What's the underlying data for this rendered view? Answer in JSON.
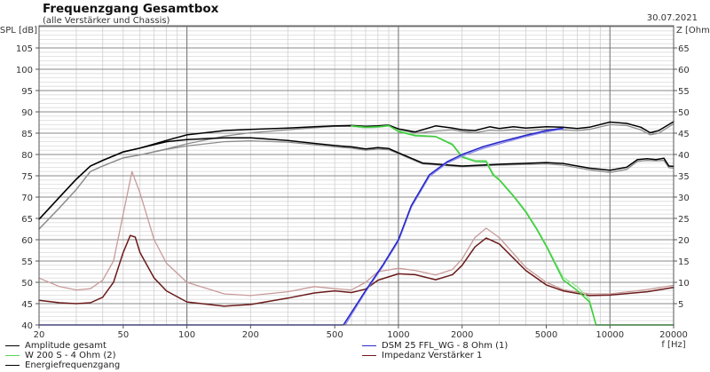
{
  "header": {
    "title": "Frequenzgang Gesamtbox",
    "subtitle": "(alle Verstärker und Chassis)",
    "date": "30.07.2021"
  },
  "legend": {
    "left": [
      {
        "label": "Amplitude gesamt",
        "color": "#000000"
      },
      {
        "label": "W 200 S - 4 Ohm (2)",
        "color": "#5ad65a"
      },
      {
        "label": "Energiefrequenzgang",
        "color": "#000000"
      }
    ],
    "right": [
      {
        "label": "DSM 25 FFL_WG - 8 Ohm (1)",
        "color": "#2b2bd0"
      },
      {
        "label": "Impedanz Verstärker 1",
        "color": "#6b1a1a"
      }
    ]
  },
  "chart_data": {
    "type": "line",
    "title": "Frequenzgang Gesamtbox",
    "subtitle": "(alle Verstärker und Chassis)",
    "xlabel": "f [Hz]",
    "ylabel": "SPL [dB]",
    "y2label": "Z [Ohm]",
    "xscale": "log",
    "xlim": [
      20,
      20000
    ],
    "ylim": [
      40,
      110
    ],
    "y2lim": [
      0,
      70
    ],
    "grid": true,
    "legend_position": "bottom",
    "x_ticks": [
      20,
      50,
      100,
      200,
      500,
      1000,
      2000,
      5000,
      10000,
      20000
    ],
    "y_ticks": [
      40,
      45,
      50,
      55,
      60,
      65,
      70,
      75,
      80,
      85,
      90,
      95,
      100,
      105
    ],
    "y2_ticks": [
      5,
      10,
      15,
      20,
      25,
      30,
      35,
      40,
      45,
      50,
      55,
      60,
      65
    ],
    "series": [
      {
        "name": "Amplitude gesamt (shadow)",
        "axis": "left",
        "color": "#8c8c8c",
        "width": 1.3,
        "points": [
          [
            20,
            62.5
          ],
          [
            25,
            67.5
          ],
          [
            30,
            71.8
          ],
          [
            35,
            76
          ],
          [
            40,
            77.3
          ],
          [
            50,
            79.2
          ],
          [
            60,
            79.9
          ],
          [
            80,
            81.3
          ],
          [
            100,
            82.5
          ],
          [
            150,
            84.3
          ],
          [
            200,
            85.1
          ],
          [
            300,
            85.8
          ],
          [
            400,
            86.3
          ],
          [
            500,
            86.6
          ],
          [
            600,
            86.6
          ],
          [
            700,
            86.3
          ],
          [
            800,
            86.4
          ],
          [
            900,
            86.7
          ],
          [
            1000,
            86.0
          ],
          [
            1200,
            85.0
          ],
          [
            1500,
            85.5
          ],
          [
            1800,
            85.8
          ],
          [
            2000,
            85.4
          ],
          [
            2300,
            85.1
          ],
          [
            2700,
            85.7
          ],
          [
            3000,
            85.6
          ],
          [
            3500,
            85.8
          ],
          [
            4000,
            85.6
          ],
          [
            5000,
            85.9
          ],
          [
            6000,
            85.8
          ],
          [
            7000,
            85.6
          ],
          [
            8000,
            85.9
          ],
          [
            10000,
            87.0
          ],
          [
            12000,
            86.8
          ],
          [
            14000,
            85.8
          ],
          [
            15500,
            84.6
          ],
          [
            17000,
            85.0
          ],
          [
            20000,
            87.2
          ]
        ]
      },
      {
        "name": "Energiefrequenzgang (shadow)",
        "axis": "left",
        "color": "#8c8c8c",
        "width": 1.3,
        "points": [
          [
            20,
            62.5
          ],
          [
            25,
            67.5
          ],
          [
            30,
            71.8
          ],
          [
            35,
            76
          ],
          [
            40,
            77.3
          ],
          [
            50,
            79.2
          ],
          [
            60,
            79.9
          ],
          [
            80,
            81.2
          ],
          [
            100,
            82.0
          ],
          [
            150,
            83.0
          ],
          [
            200,
            83.2
          ],
          [
            300,
            82.9
          ],
          [
            400,
            82.3
          ],
          [
            500,
            81.8
          ],
          [
            600,
            81.5
          ],
          [
            700,
            81.0
          ],
          [
            800,
            81.3
          ],
          [
            900,
            81.1
          ],
          [
            1000,
            80.2
          ],
          [
            1300,
            77.8
          ],
          [
            2000,
            77.1
          ],
          [
            3000,
            77.5
          ],
          [
            5000,
            77.8
          ],
          [
            6000,
            77.5
          ],
          [
            8000,
            76.4
          ],
          [
            10000,
            75.8
          ],
          [
            12000,
            76.5
          ],
          [
            13500,
            78.4
          ],
          [
            15000,
            78.6
          ],
          [
            16500,
            78.5
          ],
          [
            18000,
            78.6
          ],
          [
            19000,
            76.9
          ],
          [
            20000,
            76.8
          ]
        ]
      },
      {
        "name": "Amplitude gesamt",
        "axis": "left",
        "color": "#000000",
        "width": 1.5,
        "points": [
          [
            20,
            64.8
          ],
          [
            25,
            70
          ],
          [
            30,
            74.2
          ],
          [
            35,
            77.3
          ],
          [
            40,
            78.6
          ],
          [
            50,
            80.6
          ],
          [
            60,
            81.5
          ],
          [
            80,
            83.3
          ],
          [
            100,
            84.6
          ],
          [
            150,
            85.6
          ],
          [
            200,
            85.9
          ],
          [
            300,
            86.2
          ],
          [
            400,
            86.5
          ],
          [
            500,
            86.7
          ],
          [
            600,
            86.8
          ],
          [
            700,
            86.6
          ],
          [
            800,
            86.7
          ],
          [
            900,
            86.9
          ],
          [
            1000,
            86.0
          ],
          [
            1200,
            85.3
          ],
          [
            1500,
            86.7
          ],
          [
            1800,
            86.2
          ],
          [
            2000,
            85.8
          ],
          [
            2300,
            85.6
          ],
          [
            2700,
            86.5
          ],
          [
            3000,
            86.1
          ],
          [
            3500,
            86.5
          ],
          [
            4000,
            86.2
          ],
          [
            5000,
            86.5
          ],
          [
            6000,
            86.4
          ],
          [
            7000,
            86.1
          ],
          [
            8000,
            86.4
          ],
          [
            10000,
            87.6
          ],
          [
            12000,
            87.3
          ],
          [
            14000,
            86.4
          ],
          [
            15500,
            85.1
          ],
          [
            17000,
            85.6
          ],
          [
            20000,
            87.7
          ]
        ]
      },
      {
        "name": "Energiefrequenzgang",
        "axis": "left",
        "color": "#000000",
        "width": 1.5,
        "points": [
          [
            20,
            64.8
          ],
          [
            25,
            70
          ],
          [
            30,
            74.2
          ],
          [
            35,
            77.3
          ],
          [
            40,
            78.6
          ],
          [
            50,
            80.6
          ],
          [
            60,
            81.5
          ],
          [
            80,
            83.0
          ],
          [
            100,
            83.5
          ],
          [
            150,
            83.9
          ],
          [
            200,
            83.9
          ],
          [
            300,
            83.3
          ],
          [
            400,
            82.6
          ],
          [
            500,
            82.1
          ],
          [
            600,
            81.8
          ],
          [
            700,
            81.3
          ],
          [
            800,
            81.6
          ],
          [
            900,
            81.4
          ],
          [
            1000,
            80.4
          ],
          [
            1300,
            78.0
          ],
          [
            2000,
            77.3
          ],
          [
            3000,
            77.7
          ],
          [
            5000,
            78.1
          ],
          [
            6000,
            77.9
          ],
          [
            8000,
            76.8
          ],
          [
            10000,
            76.3
          ],
          [
            12000,
            77.0
          ],
          [
            13500,
            78.8
          ],
          [
            15000,
            79.0
          ],
          [
            16500,
            78.8
          ],
          [
            18000,
            79.1
          ],
          [
            19000,
            77.3
          ],
          [
            20000,
            77.2
          ]
        ]
      },
      {
        "name": "Impedanz (shadow)",
        "axis": "right",
        "color": "#c89a9a",
        "width": 1.3,
        "points": [
          [
            20,
            11
          ],
          [
            25,
            9
          ],
          [
            30,
            8.2
          ],
          [
            35,
            8.5
          ],
          [
            40,
            10.5
          ],
          [
            45,
            15
          ],
          [
            50,
            26
          ],
          [
            55,
            36
          ],
          [
            60,
            31
          ],
          [
            70,
            20
          ],
          [
            80,
            14.5
          ],
          [
            100,
            10
          ],
          [
            150,
            7.3
          ],
          [
            200,
            6.9
          ],
          [
            300,
            7.8
          ],
          [
            400,
            9
          ],
          [
            500,
            8.5
          ],
          [
            600,
            8.2
          ],
          [
            700,
            10
          ],
          [
            800,
            12.5
          ],
          [
            1000,
            13.3
          ],
          [
            1200,
            12.8
          ],
          [
            1500,
            11.7
          ],
          [
            1800,
            13
          ],
          [
            2000,
            15.5
          ],
          [
            2300,
            20.5
          ],
          [
            2600,
            22.7
          ],
          [
            3000,
            20.5
          ],
          [
            4000,
            13.5
          ],
          [
            5000,
            10
          ],
          [
            6000,
            8.3
          ],
          [
            8000,
            7.3
          ],
          [
            10000,
            7.3
          ],
          [
            15000,
            8.3
          ],
          [
            20000,
            9.3
          ]
        ]
      },
      {
        "name": "Impedanz Verstärker 1",
        "axis": "right",
        "color": "#6b1a1a",
        "width": 1.5,
        "points": [
          [
            20,
            5.8
          ],
          [
            25,
            5.2
          ],
          [
            30,
            5
          ],
          [
            35,
            5.2
          ],
          [
            40,
            6.5
          ],
          [
            45,
            10
          ],
          [
            50,
            17
          ],
          [
            54,
            21
          ],
          [
            57,
            20.6
          ],
          [
            60,
            17
          ],
          [
            70,
            11
          ],
          [
            80,
            8
          ],
          [
            100,
            5.4
          ],
          [
            150,
            4.4
          ],
          [
            200,
            4.8
          ],
          [
            300,
            6.3
          ],
          [
            400,
            7.5
          ],
          [
            500,
            8
          ],
          [
            600,
            7.6
          ],
          [
            700,
            8.4
          ],
          [
            800,
            10.5
          ],
          [
            1000,
            12
          ],
          [
            1200,
            11.8
          ],
          [
            1500,
            10.6
          ],
          [
            1800,
            11.8
          ],
          [
            2000,
            14
          ],
          [
            2300,
            18.3
          ],
          [
            2600,
            20.4
          ],
          [
            3000,
            19
          ],
          [
            4000,
            12.8
          ],
          [
            5000,
            9.4
          ],
          [
            6000,
            8
          ],
          [
            8000,
            6.9
          ],
          [
            10000,
            7
          ],
          [
            15000,
            7.8
          ],
          [
            20000,
            8.8
          ]
        ]
      },
      {
        "name": "W 200 S - 4 Ohm (2) (shadow)",
        "axis": "left",
        "color": "#9ae89a",
        "width": 1.4,
        "points": [
          [
            600,
            86.6
          ],
          [
            700,
            86.3
          ],
          [
            800,
            86.4
          ],
          [
            900,
            86.7
          ],
          [
            1000,
            85.6
          ],
          [
            1200,
            84.6
          ],
          [
            1500,
            84.2
          ],
          [
            1800,
            82.5
          ],
          [
            2000,
            79.6
          ],
          [
            2300,
            78.6
          ],
          [
            2600,
            78.6
          ],
          [
            2800,
            75.6
          ],
          [
            3000,
            74.2
          ],
          [
            3500,
            70.4
          ],
          [
            4000,
            66.8
          ],
          [
            4500,
            62.8
          ],
          [
            5000,
            58.8
          ],
          [
            6000,
            51.2
          ],
          [
            7000,
            49.0
          ],
          [
            8000,
            46.0
          ],
          [
            8600,
            40
          ],
          [
            20000,
            40
          ]
        ]
      },
      {
        "name": "W 200 S - 4 Ohm (2)",
        "axis": "left",
        "color": "#3ccc3c",
        "width": 1.5,
        "points": [
          [
            600,
            86.7
          ],
          [
            700,
            86.4
          ],
          [
            800,
            86.5
          ],
          [
            900,
            86.8
          ],
          [
            1000,
            85.4
          ],
          [
            1200,
            84.4
          ],
          [
            1500,
            84.2
          ],
          [
            1800,
            82.3
          ],
          [
            2000,
            79.4
          ],
          [
            2300,
            78.4
          ],
          [
            2600,
            78.3
          ],
          [
            2800,
            75.2
          ],
          [
            3000,
            74
          ],
          [
            3500,
            70.2
          ],
          [
            4000,
            66.5
          ],
          [
            4500,
            62.5
          ],
          [
            5000,
            58.5
          ],
          [
            6000,
            50.6
          ],
          [
            7000,
            48.1
          ],
          [
            8000,
            45.4
          ],
          [
            8600,
            40
          ],
          [
            20000,
            40
          ]
        ]
      },
      {
        "name": "DSM 25 FFL_WG - 8 Ohm (1) (shadow)",
        "axis": "left",
        "color": "#8a8ae8",
        "width": 1.4,
        "points": [
          [
            560,
            40
          ],
          [
            700,
            47.8
          ],
          [
            850,
            54
          ],
          [
            1000,
            59.6
          ],
          [
            1150,
            67.6
          ],
          [
            1400,
            74.8
          ],
          [
            1700,
            78
          ],
          [
            2000,
            79.6
          ],
          [
            2500,
            81.4
          ],
          [
            3000,
            82.5
          ],
          [
            4000,
            84.2
          ],
          [
            5000,
            85.3
          ],
          [
            6000,
            86
          ]
        ]
      },
      {
        "name": "DSM 25 FFL_WG - 8 Ohm (1)",
        "axis": "left",
        "color": "#2424c8",
        "width": 1.5,
        "points": [
          [
            20,
            40
          ],
          [
            549,
            40
          ],
          [
            700,
            48.1
          ],
          [
            850,
            54.3
          ],
          [
            1000,
            60
          ],
          [
            1150,
            68
          ],
          [
            1400,
            75.2
          ],
          [
            1700,
            78.3
          ],
          [
            2000,
            80
          ],
          [
            2500,
            81.8
          ],
          [
            3000,
            82.9
          ],
          [
            4000,
            84.5
          ],
          [
            5000,
            85.6
          ],
          [
            6000,
            86.2
          ]
        ]
      }
    ]
  }
}
